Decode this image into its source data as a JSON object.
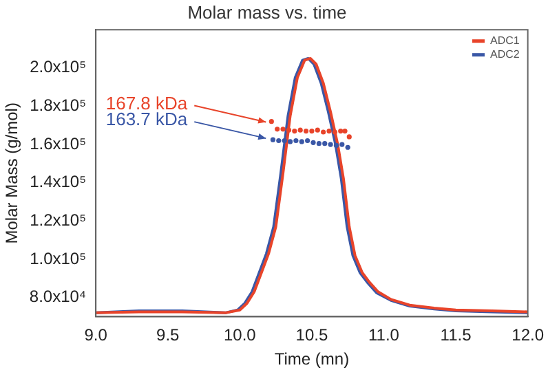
{
  "chart_data": {
    "type": "line",
    "title": "Molar mass vs. time",
    "xlabel": "Time (mn)",
    "ylabel": "Molar Mass (g/mol)",
    "xlim": [
      9,
      12
    ],
    "xticks": [
      {
        "value": 9,
        "label": "9.0"
      },
      {
        "value": 9.5,
        "label": "9.5"
      },
      {
        "value": 10,
        "label": "10.0"
      },
      {
        "value": 10.5,
        "label": "10.5"
      },
      {
        "value": 11,
        "label": "11.0"
      },
      {
        "value": 11.5,
        "label": "11.5"
      },
      {
        "value": 12,
        "label": "12.0"
      }
    ],
    "ylim": [
      70000,
      220000
    ],
    "yticks": [
      {
        "value": 80000,
        "label": "8.0x10⁴"
      },
      {
        "value": 100000,
        "label": "1.0x10⁵"
      },
      {
        "value": 120000,
        "label": "1.2x10⁵"
      },
      {
        "value": 140000,
        "label": "1.4x10⁵"
      },
      {
        "value": 160000,
        "label": "1.6x10⁵"
      },
      {
        "value": 180000,
        "label": "1.8x10⁵"
      },
      {
        "value": 200000,
        "label": "2.0x10⁵"
      }
    ],
    "grid": false,
    "legend": "top right",
    "line_style": "solid",
    "series": [
      {
        "name": "ADC1",
        "color": "#e8442a",
        "x": [
          9.0,
          9.3,
          9.6,
          9.9,
          10.0,
          10.05,
          10.1,
          10.15,
          10.2,
          10.25,
          10.3,
          10.35,
          10.4,
          10.45,
          10.49,
          10.53,
          10.58,
          10.63,
          10.68,
          10.72,
          10.76,
          10.8,
          10.85,
          10.9,
          10.96,
          11.05,
          11.18,
          11.35,
          11.5,
          11.75,
          12.0
        ],
        "values": [
          72000,
          72500,
          72500,
          72000,
          73500,
          77000,
          83000,
          93000,
          103000,
          117000,
          145000,
          175000,
          195000,
          204000,
          205000,
          202000,
          192000,
          177000,
          160000,
          142000,
          117000,
          102000,
          93000,
          88000,
          83000,
          79000,
          76000,
          74500,
          73500,
          73000,
          72500
        ]
      },
      {
        "name": "ADC2",
        "color": "#3a57a6",
        "x": [
          9.0,
          9.3,
          9.6,
          9.9,
          9.985,
          10.035,
          10.085,
          10.135,
          10.185,
          10.235,
          10.285,
          10.335,
          10.385,
          10.435,
          10.475,
          10.515,
          10.565,
          10.615,
          10.665,
          10.705,
          10.745,
          10.785,
          10.835,
          10.885,
          10.95,
          11.05,
          11.18,
          11.35,
          11.5,
          11.75,
          12.0
        ],
        "values": [
          72000,
          73000,
          73000,
          72000,
          73500,
          77000,
          83000,
          93000,
          103000,
          117000,
          145000,
          175000,
          195000,
          204000,
          205000,
          202000,
          192000,
          177000,
          160000,
          142000,
          117000,
          102000,
          93000,
          88000,
          82500,
          78500,
          75500,
          74000,
          73000,
          72500,
          72000
        ]
      },
      {
        "type": "scatter",
        "color": "#e8442a",
        "marker": "circle",
        "x": [
          10.22,
          10.26,
          10.3,
          10.34,
          10.38,
          10.42,
          10.46,
          10.5,
          10.54,
          10.58,
          10.62,
          10.66,
          10.7,
          10.73,
          10.76
        ],
        "values": [
          172000,
          168000,
          168000,
          167500,
          167000,
          167500,
          167000,
          167000,
          167500,
          166500,
          167000,
          166500,
          167000,
          167000,
          164000
        ]
      },
      {
        "type": "scatter",
        "color": "#3a57a6",
        "marker": "circle",
        "x": [
          10.23,
          10.27,
          10.31,
          10.35,
          10.39,
          10.43,
          10.47,
          10.51,
          10.55,
          10.59,
          10.63,
          10.67,
          10.71,
          10.75
        ],
        "values": [
          162500,
          162000,
          162000,
          161500,
          162000,
          161500,
          162000,
          161000,
          160500,
          160500,
          160000,
          159500,
          160000,
          158500
        ]
      }
    ],
    "annotations": [
      {
        "text": "167.8 kDa",
        "x": 10.21,
        "y": 171000
      },
      {
        "text": "163.7 kDa",
        "x": 10.21,
        "y": 162500
      }
    ]
  }
}
